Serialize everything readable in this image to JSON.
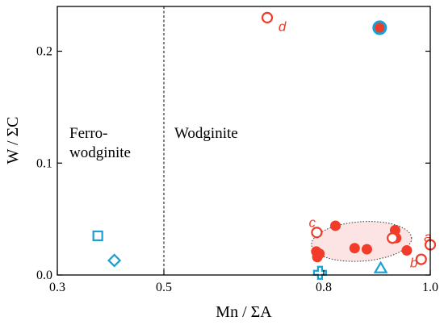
{
  "chart_data": {
    "type": "scatter",
    "xlabel": "Mn / ΣA",
    "ylabel": "W / ΣC",
    "xlim": [
      0.3,
      1.0
    ],
    "ylim": [
      0.0,
      0.24
    ],
    "x_ticks": [
      0.3,
      0.5,
      0.8,
      1.0
    ],
    "x_tick_labels": [
      "0.3",
      "0.5",
      "0.8",
      "1.0"
    ],
    "y_ticks": [
      0.0,
      0.1,
      0.2
    ],
    "y_tick_labels": [
      "0.0",
      "0.1",
      "0.2"
    ],
    "grid": false,
    "colors": {
      "red": "#f03c28",
      "cyan": "#1aa0d6"
    },
    "divider": {
      "x": 0.5,
      "style": "dashed"
    },
    "regions": [
      {
        "name": "Ferro-wodginite",
        "lines": [
          "Ferro-",
          "wodginite"
        ]
      },
      {
        "name": "Wodginite",
        "lines": [
          "Wodginite"
        ]
      }
    ],
    "envelope": {
      "color": "#fde4e4"
    },
    "series": [
      {
        "marker": "filled-circle",
        "color": "#f03c28",
        "points": [
          {
            "x": 0.786,
            "y": 0.021
          },
          {
            "x": 0.788,
            "y": 0.016
          },
          {
            "x": 0.792,
            "y": 0.019
          },
          {
            "x": 0.822,
            "y": 0.044
          },
          {
            "x": 0.858,
            "y": 0.024
          },
          {
            "x": 0.881,
            "y": 0.023
          },
          {
            "x": 0.934,
            "y": 0.04
          },
          {
            "x": 0.936,
            "y": 0.033
          },
          {
            "x": 0.956,
            "y": 0.022
          }
        ]
      },
      {
        "marker": "open-circle",
        "color": "#f03c28",
        "points": [
          {
            "x": 0.694,
            "y": 0.23
          },
          {
            "x": 0.787,
            "y": 0.038
          },
          {
            "x": 0.929,
            "y": 0.033
          },
          {
            "x": 0.983,
            "y": 0.014
          },
          {
            "x": 1.0,
            "y": 0.027
          }
        ]
      },
      {
        "marker": "ringed-circle",
        "color": "#f03c28",
        "ring_color": "#1aa0d6",
        "points": [
          {
            "x": 0.905,
            "y": 0.221
          }
        ]
      },
      {
        "marker": "open-square",
        "color": "#1aa0d6",
        "points": [
          {
            "x": 0.376,
            "y": 0.035
          }
        ]
      },
      {
        "marker": "open-diamond",
        "color": "#1aa0d6",
        "points": [
          {
            "x": 0.407,
            "y": 0.013
          }
        ]
      },
      {
        "marker": "open-cross",
        "color": "#1aa0d6",
        "points": [
          {
            "x": 0.793,
            "y": 0.002
          }
        ]
      },
      {
        "marker": "open-triangle",
        "color": "#1aa0d6",
        "points": [
          {
            "x": 0.907,
            "y": 0.006
          }
        ]
      }
    ],
    "annotations": [
      {
        "text": "d",
        "x": 0.715,
        "y": 0.218
      },
      {
        "text": "c",
        "x": 0.772,
        "y": 0.043
      },
      {
        "text": "a",
        "x": 0.988,
        "y": 0.03
      },
      {
        "text": "b",
        "x": 0.962,
        "y": 0.007
      }
    ]
  }
}
